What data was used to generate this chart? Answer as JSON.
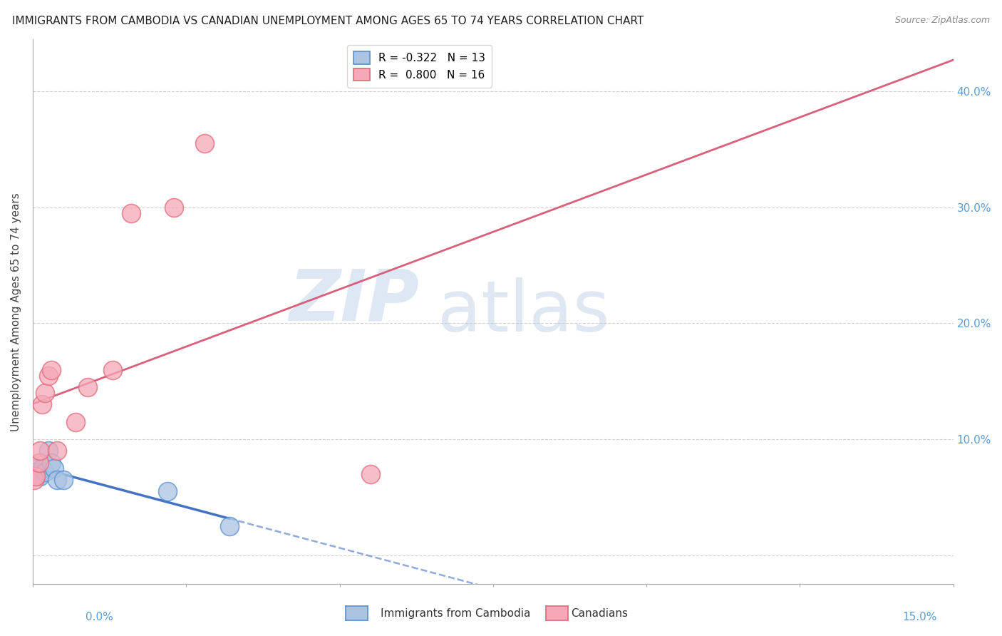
{
  "title": "IMMIGRANTS FROM CAMBODIA VS CANADIAN UNEMPLOYMENT AMONG AGES 65 TO 74 YEARS CORRELATION CHART",
  "source": "Source: ZipAtlas.com",
  "ylabel": "Unemployment Among Ages 65 to 74 years",
  "right_ytick_vals": [
    0.0,
    0.1,
    0.2,
    0.3,
    0.4
  ],
  "right_ytick_labels": [
    "",
    "10.0%",
    "20.0%",
    "30.0%",
    "40.0%"
  ],
  "xlim": [
    0.0,
    0.15
  ],
  "ylim": [
    -0.025,
    0.445
  ],
  "cambodia_x": [
    0.0002,
    0.0005,
    0.001,
    0.0012,
    0.0015,
    0.002,
    0.0025,
    0.003,
    0.0035,
    0.004,
    0.005,
    0.022,
    0.032
  ],
  "cambodia_y": [
    0.075,
    0.072,
    0.07,
    0.068,
    0.075,
    0.072,
    0.09,
    0.08,
    0.075,
    0.065,
    0.065,
    0.055,
    0.025
  ],
  "canadians_x": [
    0.0002,
    0.0005,
    0.001,
    0.0012,
    0.0015,
    0.002,
    0.0025,
    0.003,
    0.004,
    0.007,
    0.009,
    0.013,
    0.016,
    0.023,
    0.028,
    0.055
  ],
  "canadians_y": [
    0.065,
    0.068,
    0.08,
    0.09,
    0.13,
    0.14,
    0.155,
    0.16,
    0.09,
    0.115,
    0.145,
    0.16,
    0.295,
    0.3,
    0.355,
    0.07
  ],
  "cambodia_color": "#aac4e2",
  "canadians_color": "#f5a8b8",
  "cambodia_edge_color": "#5590d0",
  "canadians_edge_color": "#e06878",
  "cambodia_line_color": "#4472c4",
  "canadians_line_color": "#d9607a",
  "legend_cambodia_r": "-0.322",
  "legend_cambodia_n": "13",
  "legend_canadians_r": "0.800",
  "legend_canadians_n": "16",
  "watermark_zip": "ZIP",
  "watermark_atlas": "atlas",
  "title_fontsize": 11,
  "source_fontsize": 9,
  "axis_label_fontsize": 11,
  "tick_fontsize": 11,
  "legend_fontsize": 11,
  "watermark_fontsize_zip": 72,
  "watermark_fontsize_atlas": 72
}
